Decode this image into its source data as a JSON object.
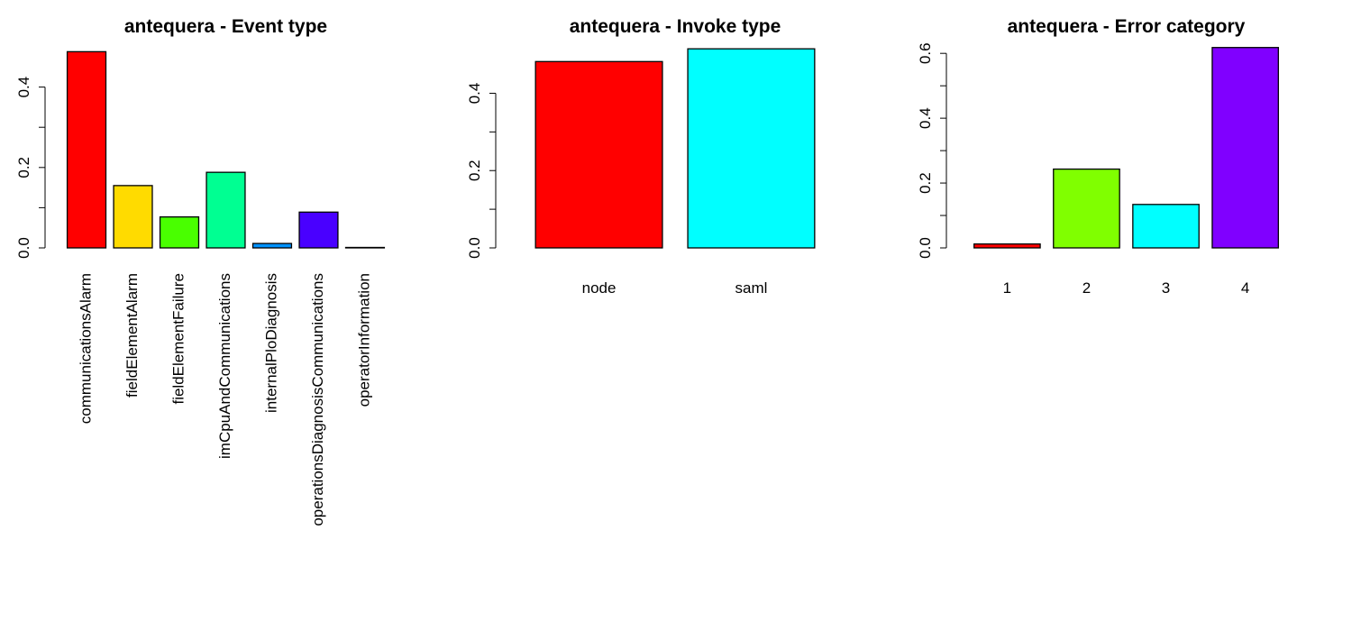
{
  "chart_data": [
    {
      "type": "bar",
      "title": "antequera - Event type",
      "xlabel": "",
      "ylabel": "",
      "ylim": [
        0,
        0.5
      ],
      "yticks": [
        0.0,
        0.2,
        0.4
      ],
      "ytick_labels": [
        "0.0",
        "0.2",
        "0.4"
      ],
      "categories": [
        "communicationsAlarm",
        "fieldElementAlarm",
        "fieldElementFailure",
        "imCpuAndCommunications",
        "internalPloDiagnosis",
        "operationsDiagnosisCommunications",
        "operatorInformation"
      ],
      "values": [
        0.488,
        0.155,
        0.077,
        0.188,
        0.011,
        0.089,
        0.001
      ],
      "colors": [
        "#FF0000",
        "#FFDB00",
        "#49FF00",
        "#00FF92",
        "#0092FF",
        "#4900FF",
        "#FF00DB"
      ],
      "category_label_rotation": "vertical",
      "grid": false,
      "legend": "none"
    },
    {
      "type": "bar",
      "title": "antequera - Invoke type",
      "xlabel": "",
      "ylabel": "",
      "ylim": [
        0,
        0.52
      ],
      "yticks": [
        0.0,
        0.2,
        0.4
      ],
      "ytick_labels": [
        "0.0",
        "0.2",
        "0.4"
      ],
      "categories": [
        "node",
        "saml"
      ],
      "values": [
        0.482,
        0.515
      ],
      "colors": [
        "#FF0000",
        "#00FFFF"
      ],
      "category_label_rotation": "horizontal",
      "grid": false,
      "legend": "none"
    },
    {
      "type": "bar",
      "title": "antequera - Error category",
      "xlabel": "",
      "ylabel": "",
      "ylim": [
        0,
        0.62
      ],
      "yticks": [
        0.0,
        0.2,
        0.4,
        0.6
      ],
      "ytick_labels": [
        "0.0",
        "0.2",
        "0.4",
        "0.6"
      ],
      "categories": [
        "1",
        "2",
        "3",
        "4"
      ],
      "values": [
        0.012,
        0.243,
        0.134,
        0.618
      ],
      "colors": [
        "#FF0000",
        "#80FF00",
        "#00FFFF",
        "#8000FF"
      ],
      "category_label_rotation": "horizontal",
      "grid": false,
      "legend": "none"
    }
  ]
}
